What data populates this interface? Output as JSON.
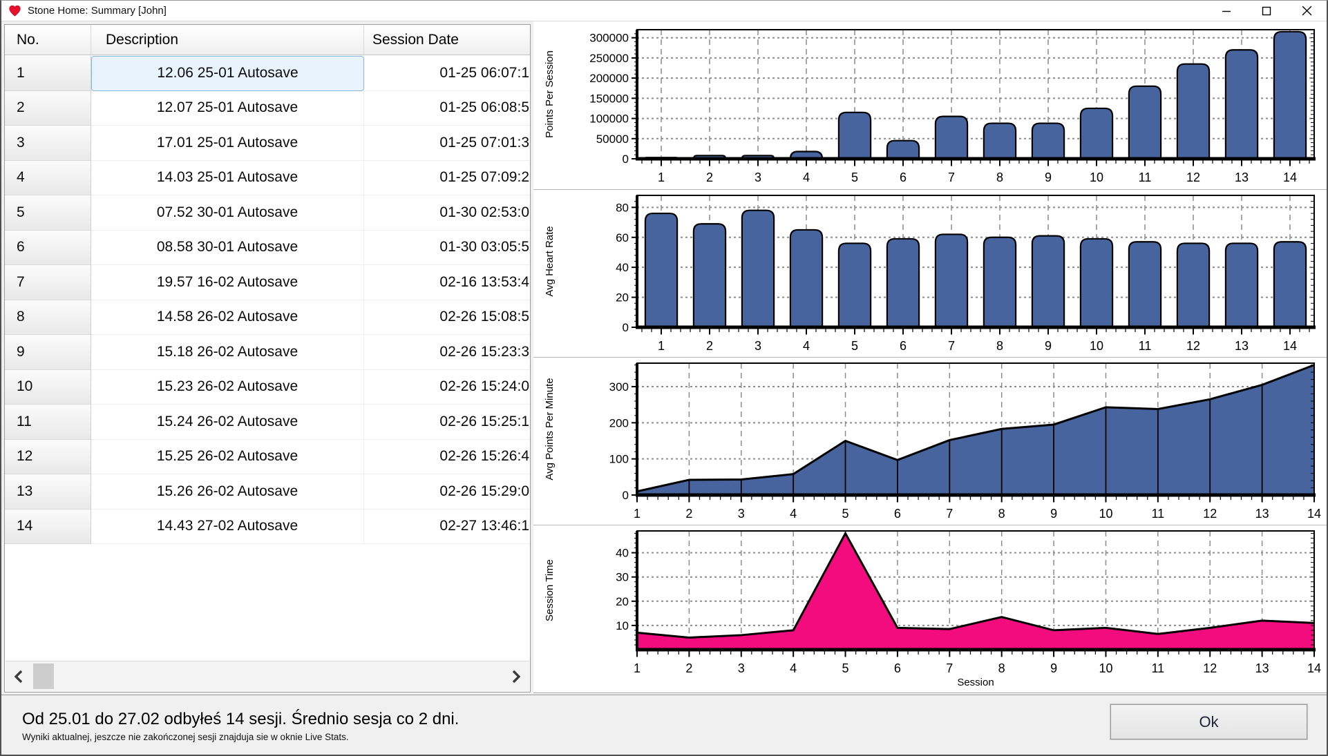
{
  "window_title": "Stone Home: Summary [John]",
  "icons": {
    "heart": "❤",
    "minimize": "−",
    "maximize": "☐",
    "close": "✕",
    "scroll_left": "‹",
    "scroll_right": "›"
  },
  "table": {
    "columns": [
      "No.",
      "Description",
      "Session Date"
    ],
    "rows": [
      {
        "no": "1",
        "description": "12.06 25-01 Autosave",
        "session_date": "01-25 06:07:1",
        "selected": true
      },
      {
        "no": "2",
        "description": "12.07 25-01 Autosave",
        "session_date": "01-25 06:08:5",
        "selected": false
      },
      {
        "no": "3",
        "description": "17.01 25-01 Autosave",
        "session_date": "01-25 07:01:3",
        "selected": false
      },
      {
        "no": "4",
        "description": "14.03 25-01 Autosave",
        "session_date": "01-25 07:09:2",
        "selected": false
      },
      {
        "no": "5",
        "description": "07.52 30-01 Autosave",
        "session_date": "01-30 02:53:0",
        "selected": false
      },
      {
        "no": "6",
        "description": "08.58 30-01 Autosave",
        "session_date": "01-30 03:05:5",
        "selected": false
      },
      {
        "no": "7",
        "description": "19.57 16-02 Autosave",
        "session_date": "02-16 13:53:4",
        "selected": false
      },
      {
        "no": "8",
        "description": "14.58 26-02 Autosave",
        "session_date": "02-26 15:08:5",
        "selected": false
      },
      {
        "no": "9",
        "description": "15.18 26-02 Autosave",
        "session_date": "02-26 15:23:3",
        "selected": false
      },
      {
        "no": "10",
        "description": "15.23 26-02 Autosave",
        "session_date": "02-26 15:24:0",
        "selected": false
      },
      {
        "no": "11",
        "description": "15.24 26-02 Autosave",
        "session_date": "02-26 15:25:1",
        "selected": false
      },
      {
        "no": "12",
        "description": "15.25 26-02 Autosave",
        "session_date": "02-26 15:26:4",
        "selected": false
      },
      {
        "no": "13",
        "description": "15.26 26-02 Autosave",
        "session_date": "02-26 15:29:0",
        "selected": false
      },
      {
        "no": "14",
        "description": "14.43 27-02 Autosave",
        "session_date": "02-27 13:46:1",
        "selected": false
      }
    ]
  },
  "chart_data": [
    {
      "type": "bar",
      "ylabel": "Points Per Session",
      "xlabel": "",
      "categories": [
        "1",
        "2",
        "3",
        "4",
        "5",
        "6",
        "7",
        "8",
        "9",
        "10",
        "11",
        "12",
        "13",
        "14"
      ],
      "values": [
        3000,
        8000,
        8000,
        18000,
        115000,
        45000,
        105000,
        88000,
        88000,
        125000,
        180000,
        235000,
        270000,
        315000
      ],
      "yticks": [
        0,
        50000,
        100000,
        150000,
        200000,
        250000,
        300000
      ],
      "ymax": 320000,
      "color": "#47649E",
      "grid": true,
      "legend": "none"
    },
    {
      "type": "bar",
      "ylabel": "Avg Heart Rate",
      "xlabel": "",
      "categories": [
        "1",
        "2",
        "3",
        "4",
        "5",
        "6",
        "7",
        "8",
        "9",
        "10",
        "11",
        "12",
        "13",
        "14"
      ],
      "values": [
        76,
        69,
        78,
        65,
        56,
        59,
        62,
        60,
        61,
        59,
        57,
        56,
        56,
        57
      ],
      "yticks": [
        0,
        20,
        40,
        60,
        80
      ],
      "ymax": 88,
      "color": "#47649E",
      "grid": true,
      "legend": "none"
    },
    {
      "type": "area",
      "ylabel": "Avg Points Per Minute",
      "xlabel": "",
      "categories": [
        "1",
        "2",
        "3",
        "4",
        "5",
        "6",
        "7",
        "8",
        "9",
        "10",
        "11",
        "12",
        "13",
        "14"
      ],
      "values": [
        10,
        42,
        43,
        58,
        150,
        97,
        152,
        183,
        195,
        243,
        238,
        265,
        305,
        360
      ],
      "yticks": [
        0,
        100,
        200,
        300
      ],
      "ymax": 365,
      "color": "#47649E",
      "vlines": true,
      "grid": true,
      "legend": "none"
    },
    {
      "type": "area",
      "ylabel": "Session Time",
      "xlabel": "Session",
      "categories": [
        "1",
        "2",
        "3",
        "4",
        "5",
        "6",
        "7",
        "8",
        "9",
        "10",
        "11",
        "12",
        "13",
        "14"
      ],
      "values": [
        7,
        5,
        6,
        8,
        48,
        9,
        8.5,
        13.5,
        8,
        9,
        6.5,
        9,
        12,
        11
      ],
      "yticks": [
        10,
        20,
        30,
        40
      ],
      "ymax": 49,
      "color": "#F30C7D",
      "vlines": false,
      "grid": true,
      "legend": "none"
    }
  ],
  "status": {
    "line1": "Od 25.01 do 27.02 odbyłeś 14 sesji. Średnio sesja co 2 dni.",
    "line2": "Wyniki aktualnej, jeszcze nie zakończonej sesji znajduja sie w oknie Live Stats."
  },
  "ok_button": "Ok",
  "colors": {
    "bar_fill": "#47649E",
    "pink_fill": "#F30C7D",
    "grid_line": "#8C8C8C",
    "selected_bg": "#E9F3FD",
    "selected_border": "#86B7E2",
    "heart_red": "#E8112D"
  }
}
